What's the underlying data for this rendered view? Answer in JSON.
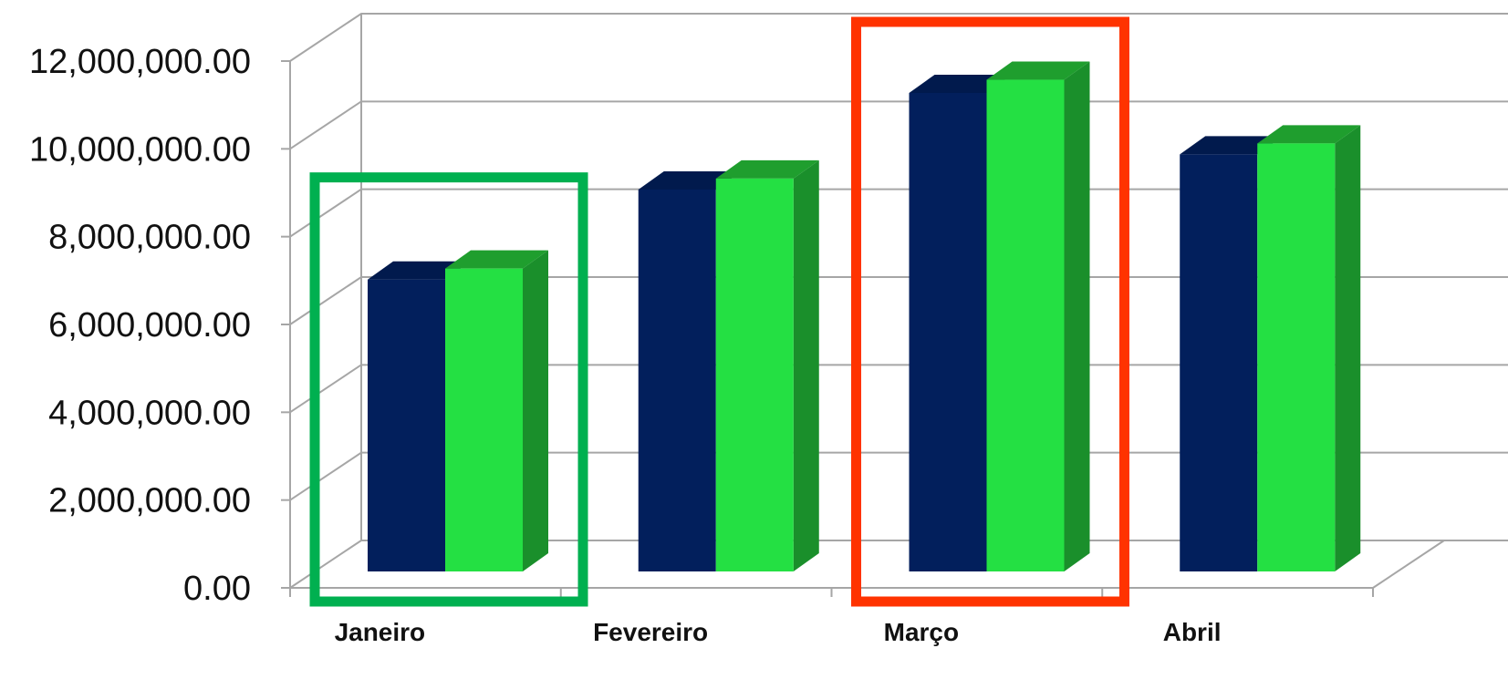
{
  "chart_data": {
    "type": "bar",
    "categories": [
      "Janeiro",
      "Fevereiro",
      "Março",
      "Abril"
    ],
    "series": [
      {
        "color": "#021f5c",
        "top_color": "#011a4d",
        "values": [
          6650000,
          8700000,
          10900000,
          9500000
        ]
      },
      {
        "color": "#24e043",
        "top_color": "#1f9e2e",
        "side_color": "#1a8f2b",
        "values": [
          6900000,
          8950000,
          11200000,
          9750000
        ]
      }
    ],
    "y_ticks": [
      "0.00",
      "2,000,000.00",
      "4,000,000.00",
      "6,000,000.00",
      "8,000,000.00",
      "10,000,000.00",
      "12,000,000.00"
    ],
    "ylim": [
      0,
      12000000
    ],
    "grid": true,
    "style": "3d-clustered-column",
    "highlights": [
      {
        "category": "Janeiro",
        "color": "#00b050"
      },
      {
        "category": "Março",
        "color": "#ff3300"
      }
    ],
    "title": "",
    "xlabel": "",
    "ylabel": ""
  }
}
